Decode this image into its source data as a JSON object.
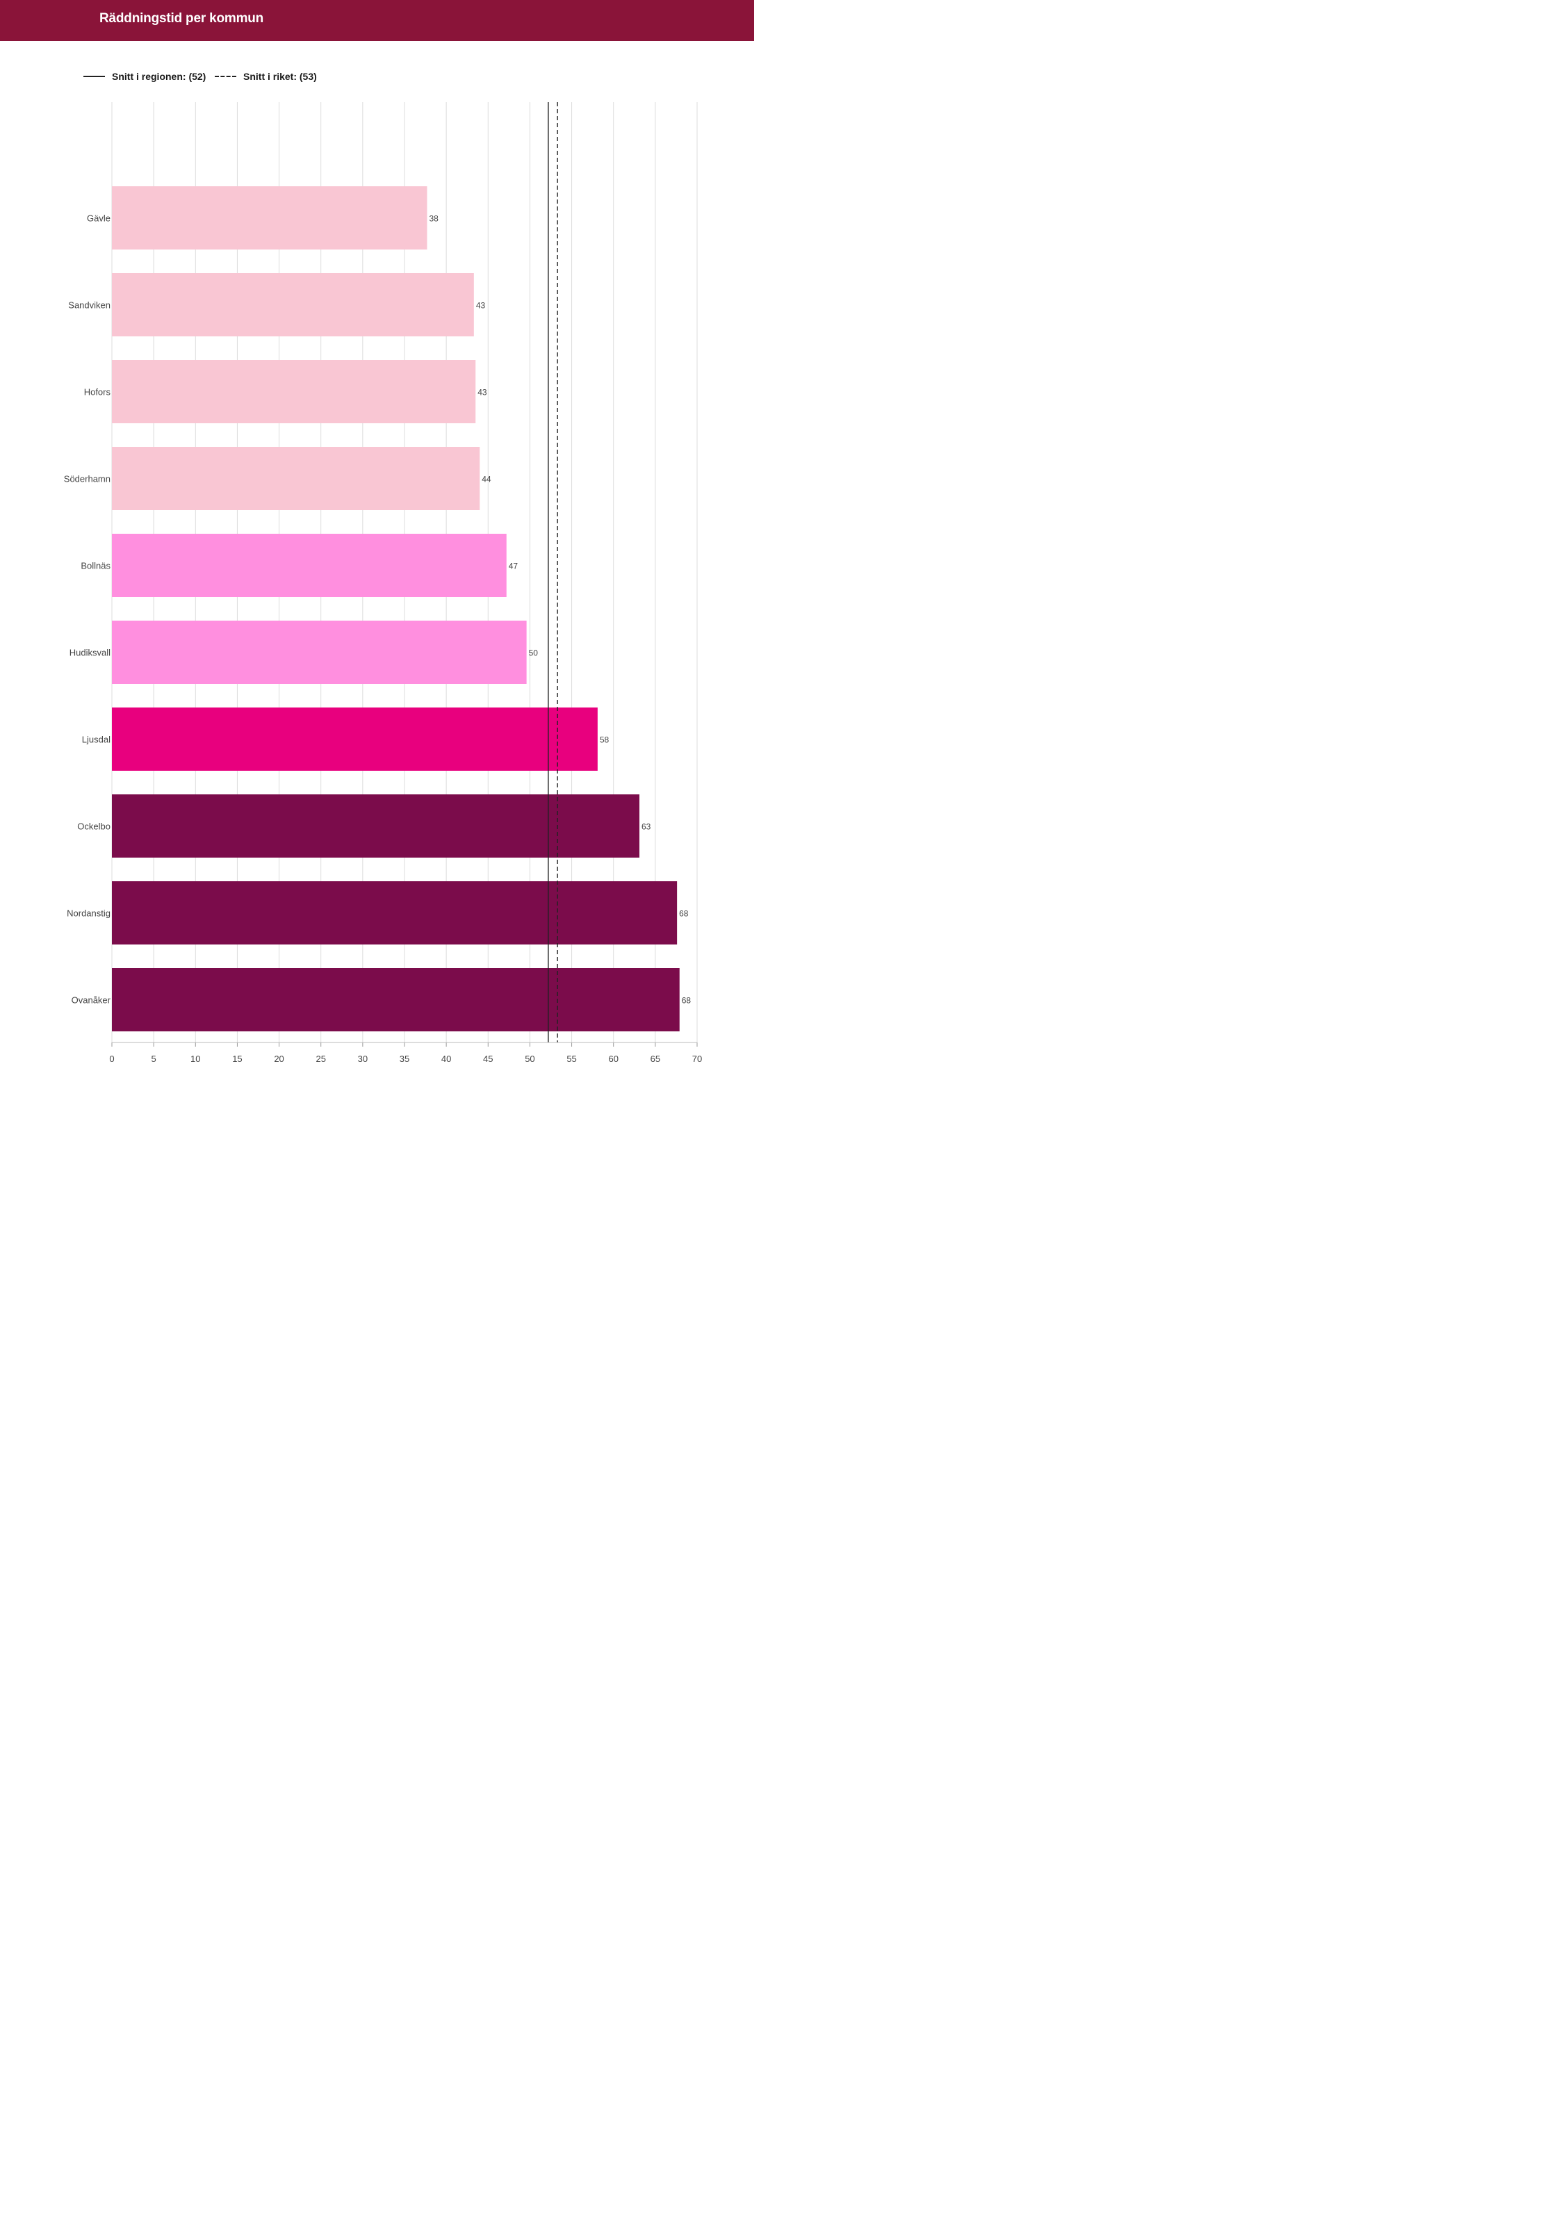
{
  "header": {
    "title": "Räddningstid per kommun"
  },
  "legend": {
    "items": [
      {
        "label": "Snitt i regionen: (52)",
        "style": "solid"
      },
      {
        "label": "Snitt i riket: (53)",
        "style": "dashed"
      }
    ]
  },
  "chart_data": {
    "type": "bar",
    "orientation": "horizontal",
    "title": "Räddningstid per kommun",
    "categories": [
      "Gävle",
      "Sandviken",
      "Hofors",
      "Söderhamn",
      "Bollnäs",
      "Hudiksvall",
      "Ljusdal",
      "Ockelbo",
      "Nordanstig",
      "Ovanåker"
    ],
    "values": [
      37.7,
      43.3,
      43.5,
      44.0,
      47.2,
      49.6,
      58.1,
      63.1,
      67.6,
      67.9
    ],
    "value_labels": [
      "38",
      "43",
      "43",
      "44",
      "47",
      "50",
      "58",
      "63",
      "68",
      "68"
    ],
    "bar_colors": [
      "#f9c6d3",
      "#f9c6d3",
      "#f9c6d3",
      "#f9c6d3",
      "#ff8fdf",
      "#ff8fdf",
      "#e8007e",
      "#7b0c4b",
      "#7b0c4b",
      "#7b0c4b"
    ],
    "xlim": [
      0,
      70
    ],
    "xticks": [
      0,
      5,
      10,
      15,
      20,
      25,
      30,
      35,
      40,
      45,
      50,
      55,
      60,
      65,
      70
    ],
    "grid": true,
    "legend_position": "top-left",
    "reference_lines": [
      {
        "label": "Snitt i regionen: (52)",
        "value": 52.2,
        "style": "solid"
      },
      {
        "label": "Snitt i riket: (53)",
        "value": 53.3,
        "style": "dashed"
      }
    ]
  }
}
